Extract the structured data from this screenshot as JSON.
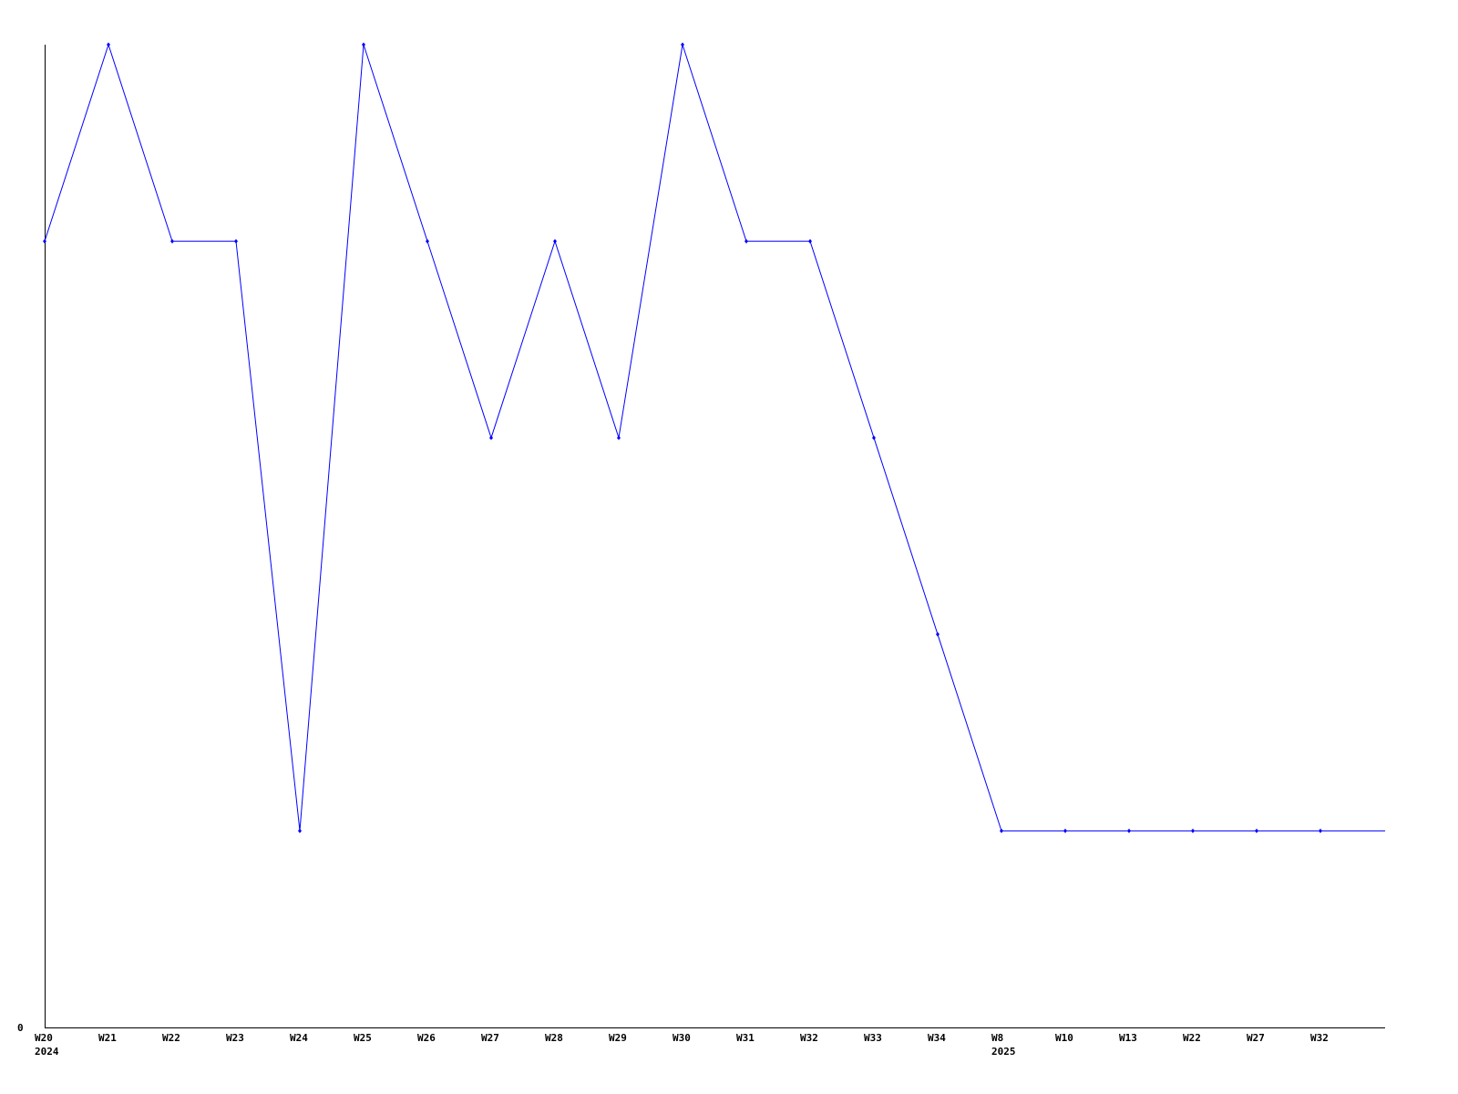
{
  "chart_data": {
    "type": "line",
    "title": "",
    "xlabel": "",
    "ylabel": "",
    "y_tick_labels": [
      "0"
    ],
    "ylim": [
      0,
      5
    ],
    "grid": false,
    "line_color": "#0000ff",
    "axis_color": "#000000",
    "categories": [
      "W20",
      "W21",
      "W22",
      "W23",
      "W24",
      "W25",
      "W26",
      "W27",
      "W28",
      "W29",
      "W30",
      "W31",
      "W32",
      "W33",
      "W34",
      "W8",
      "W10",
      "W13",
      "W22",
      "W27",
      "W32"
    ],
    "year_labels": [
      {
        "index": 0,
        "label": "2024"
      },
      {
        "index": 15,
        "label": "2025"
      }
    ],
    "values": [
      4,
      5,
      4,
      4,
      1,
      5,
      4,
      3,
      4,
      3,
      5,
      4,
      4,
      3,
      2,
      1,
      1,
      1,
      1,
      1,
      1
    ],
    "line_continues_right_at": 1
  }
}
